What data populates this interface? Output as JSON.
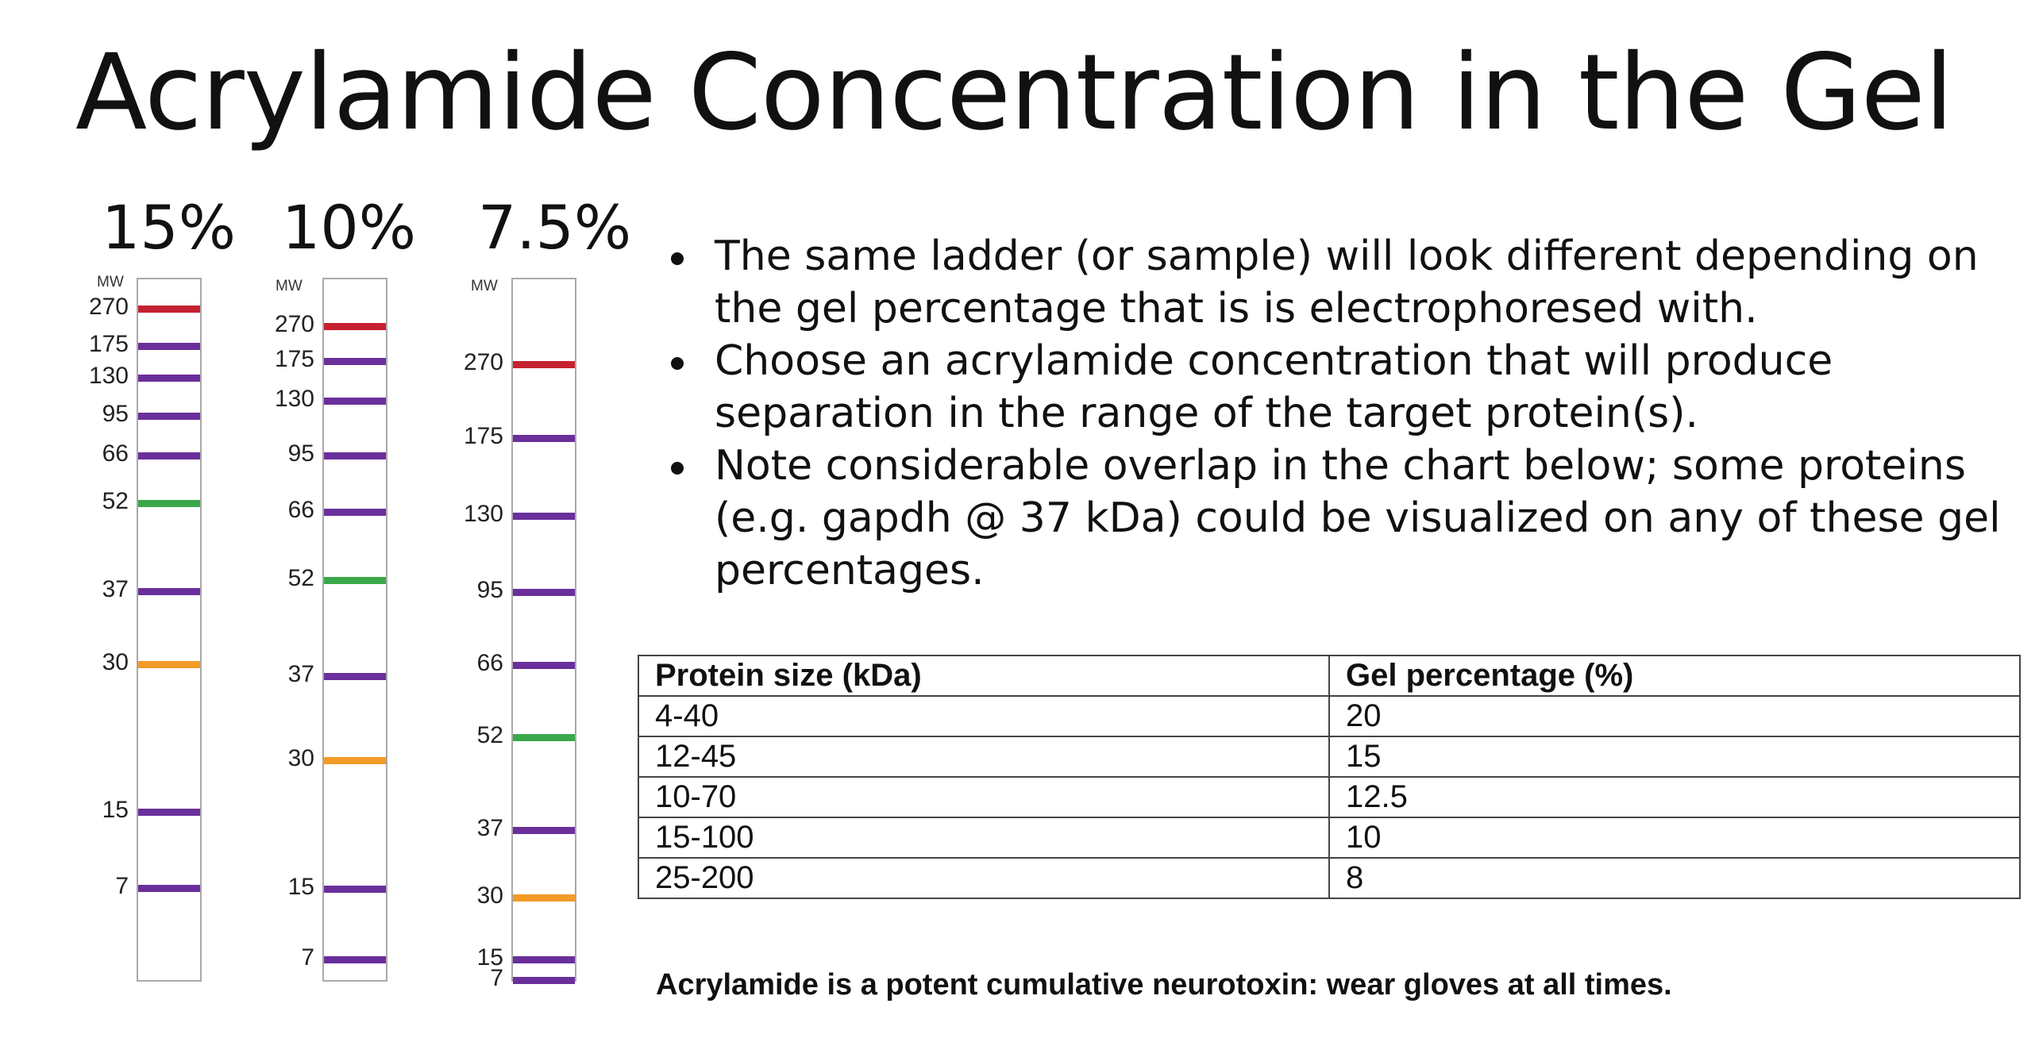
{
  "title": "Acrylamide Concentration in the Gel",
  "colors": {
    "red": "#c62130",
    "purple": "#6a2f9b",
    "green": "#3aa84a",
    "orange": "#f39a27",
    "lane_border": "#a9a9a9"
  },
  "gels": [
    {
      "percent": "15%",
      "mw_header": "MW",
      "bands": [
        {
          "label": "270",
          "color": "red"
        },
        {
          "label": "175",
          "color": "purple"
        },
        {
          "label": "130",
          "color": "purple"
        },
        {
          "label": "95",
          "color": "purple"
        },
        {
          "label": "66",
          "color": "purple"
        },
        {
          "label": "52",
          "color": "green"
        },
        {
          "label": "37",
          "color": "purple"
        },
        {
          "label": "30",
          "color": "orange"
        },
        {
          "label": "15",
          "color": "purple"
        },
        {
          "label": "7",
          "color": "purple"
        }
      ]
    },
    {
      "percent": "10%",
      "mw_header": "MW",
      "bands": [
        {
          "label": "270",
          "color": "red"
        },
        {
          "label": "175",
          "color": "purple"
        },
        {
          "label": "130",
          "color": "purple"
        },
        {
          "label": "95",
          "color": "purple"
        },
        {
          "label": "66",
          "color": "purple"
        },
        {
          "label": "52",
          "color": "green"
        },
        {
          "label": "37",
          "color": "purple"
        },
        {
          "label": "30",
          "color": "orange"
        },
        {
          "label": "15",
          "color": "purple"
        },
        {
          "label": "7",
          "color": "purple"
        }
      ]
    },
    {
      "percent": "7.5%",
      "mw_header": "MW",
      "bands": [
        {
          "label": "270",
          "color": "red"
        },
        {
          "label": "175",
          "color": "purple"
        },
        {
          "label": "130",
          "color": "purple"
        },
        {
          "label": "95",
          "color": "purple"
        },
        {
          "label": "66",
          "color": "purple"
        },
        {
          "label": "52",
          "color": "green"
        },
        {
          "label": "37",
          "color": "purple"
        },
        {
          "label": "30",
          "color": "orange"
        },
        {
          "label": "15",
          "color": "purple"
        },
        {
          "label": "7",
          "color": "purple"
        }
      ]
    }
  ],
  "bullets": [
    "The same ladder (or sample) will look different depending on the gel percentage that is is electrophoresed with.",
    "Choose an acrylamide concentration that will produce separation in the range of the target protein(s).",
    "Note considerable overlap in the chart below; some proteins (e.g. gapdh @ 37 kDa) could  be visualized on any of these gel percentages."
  ],
  "table": {
    "headers": [
      "Protein size (kDa)",
      "Gel percentage (%)"
    ],
    "rows": [
      [
        "4-40",
        "20"
      ],
      [
        "12-45",
        "15"
      ],
      [
        "10-70",
        "12.5"
      ],
      [
        "15-100",
        "10"
      ],
      [
        "25-200",
        "8"
      ]
    ]
  },
  "warning": "Acrylamide is a potent cumulative neurotoxin: wear gloves at all times."
}
